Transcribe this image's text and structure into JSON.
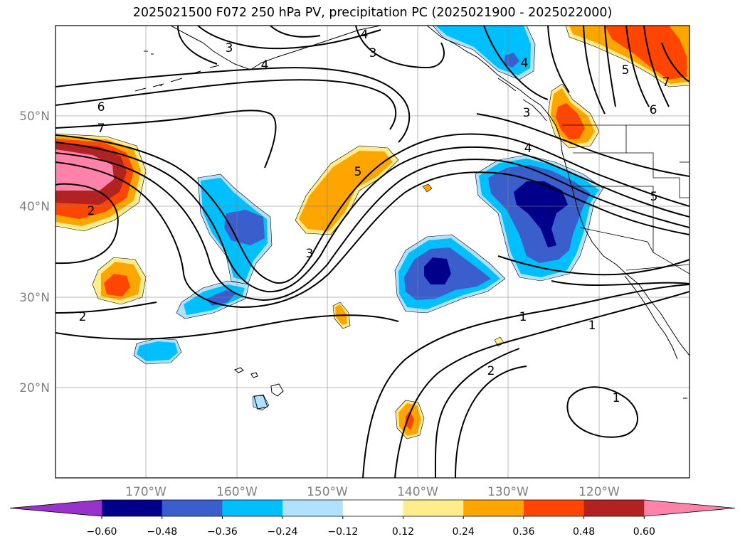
{
  "title": "2025021500 F072 250 hPa PV, precipitation PC (2025021900 - 2025022000)",
  "map": {
    "lat_ticks": [
      "50°N",
      "40°N",
      "30°N",
      "20°N"
    ],
    "lon_ticks": [
      "170°W",
      "160°W",
      "150°W",
      "140°W",
      "130°W",
      "120°W"
    ],
    "contour_labels": [
      "4",
      "3",
      "4",
      "3",
      "6",
      "7",
      "2",
      "2",
      "3",
      "5",
      "4",
      "1",
      "1",
      "2",
      "1",
      "5",
      "6",
      "7",
      "3",
      "4",
      "5"
    ]
  },
  "colorbar": {
    "ticks": [
      "−0.60",
      "−0.48",
      "−0.36",
      "−0.24",
      "−0.12",
      "0.12",
      "0.24",
      "0.36",
      "0.48",
      "0.60"
    ],
    "colors": [
      "#9932cc",
      "#00008b",
      "#3a5fcd",
      "#00bfff",
      "#b0e2ff",
      "#ffffff",
      "#ffec8b",
      "#ffa500",
      "#ff4500",
      "#b22222",
      "#ff82ab"
    ]
  }
}
